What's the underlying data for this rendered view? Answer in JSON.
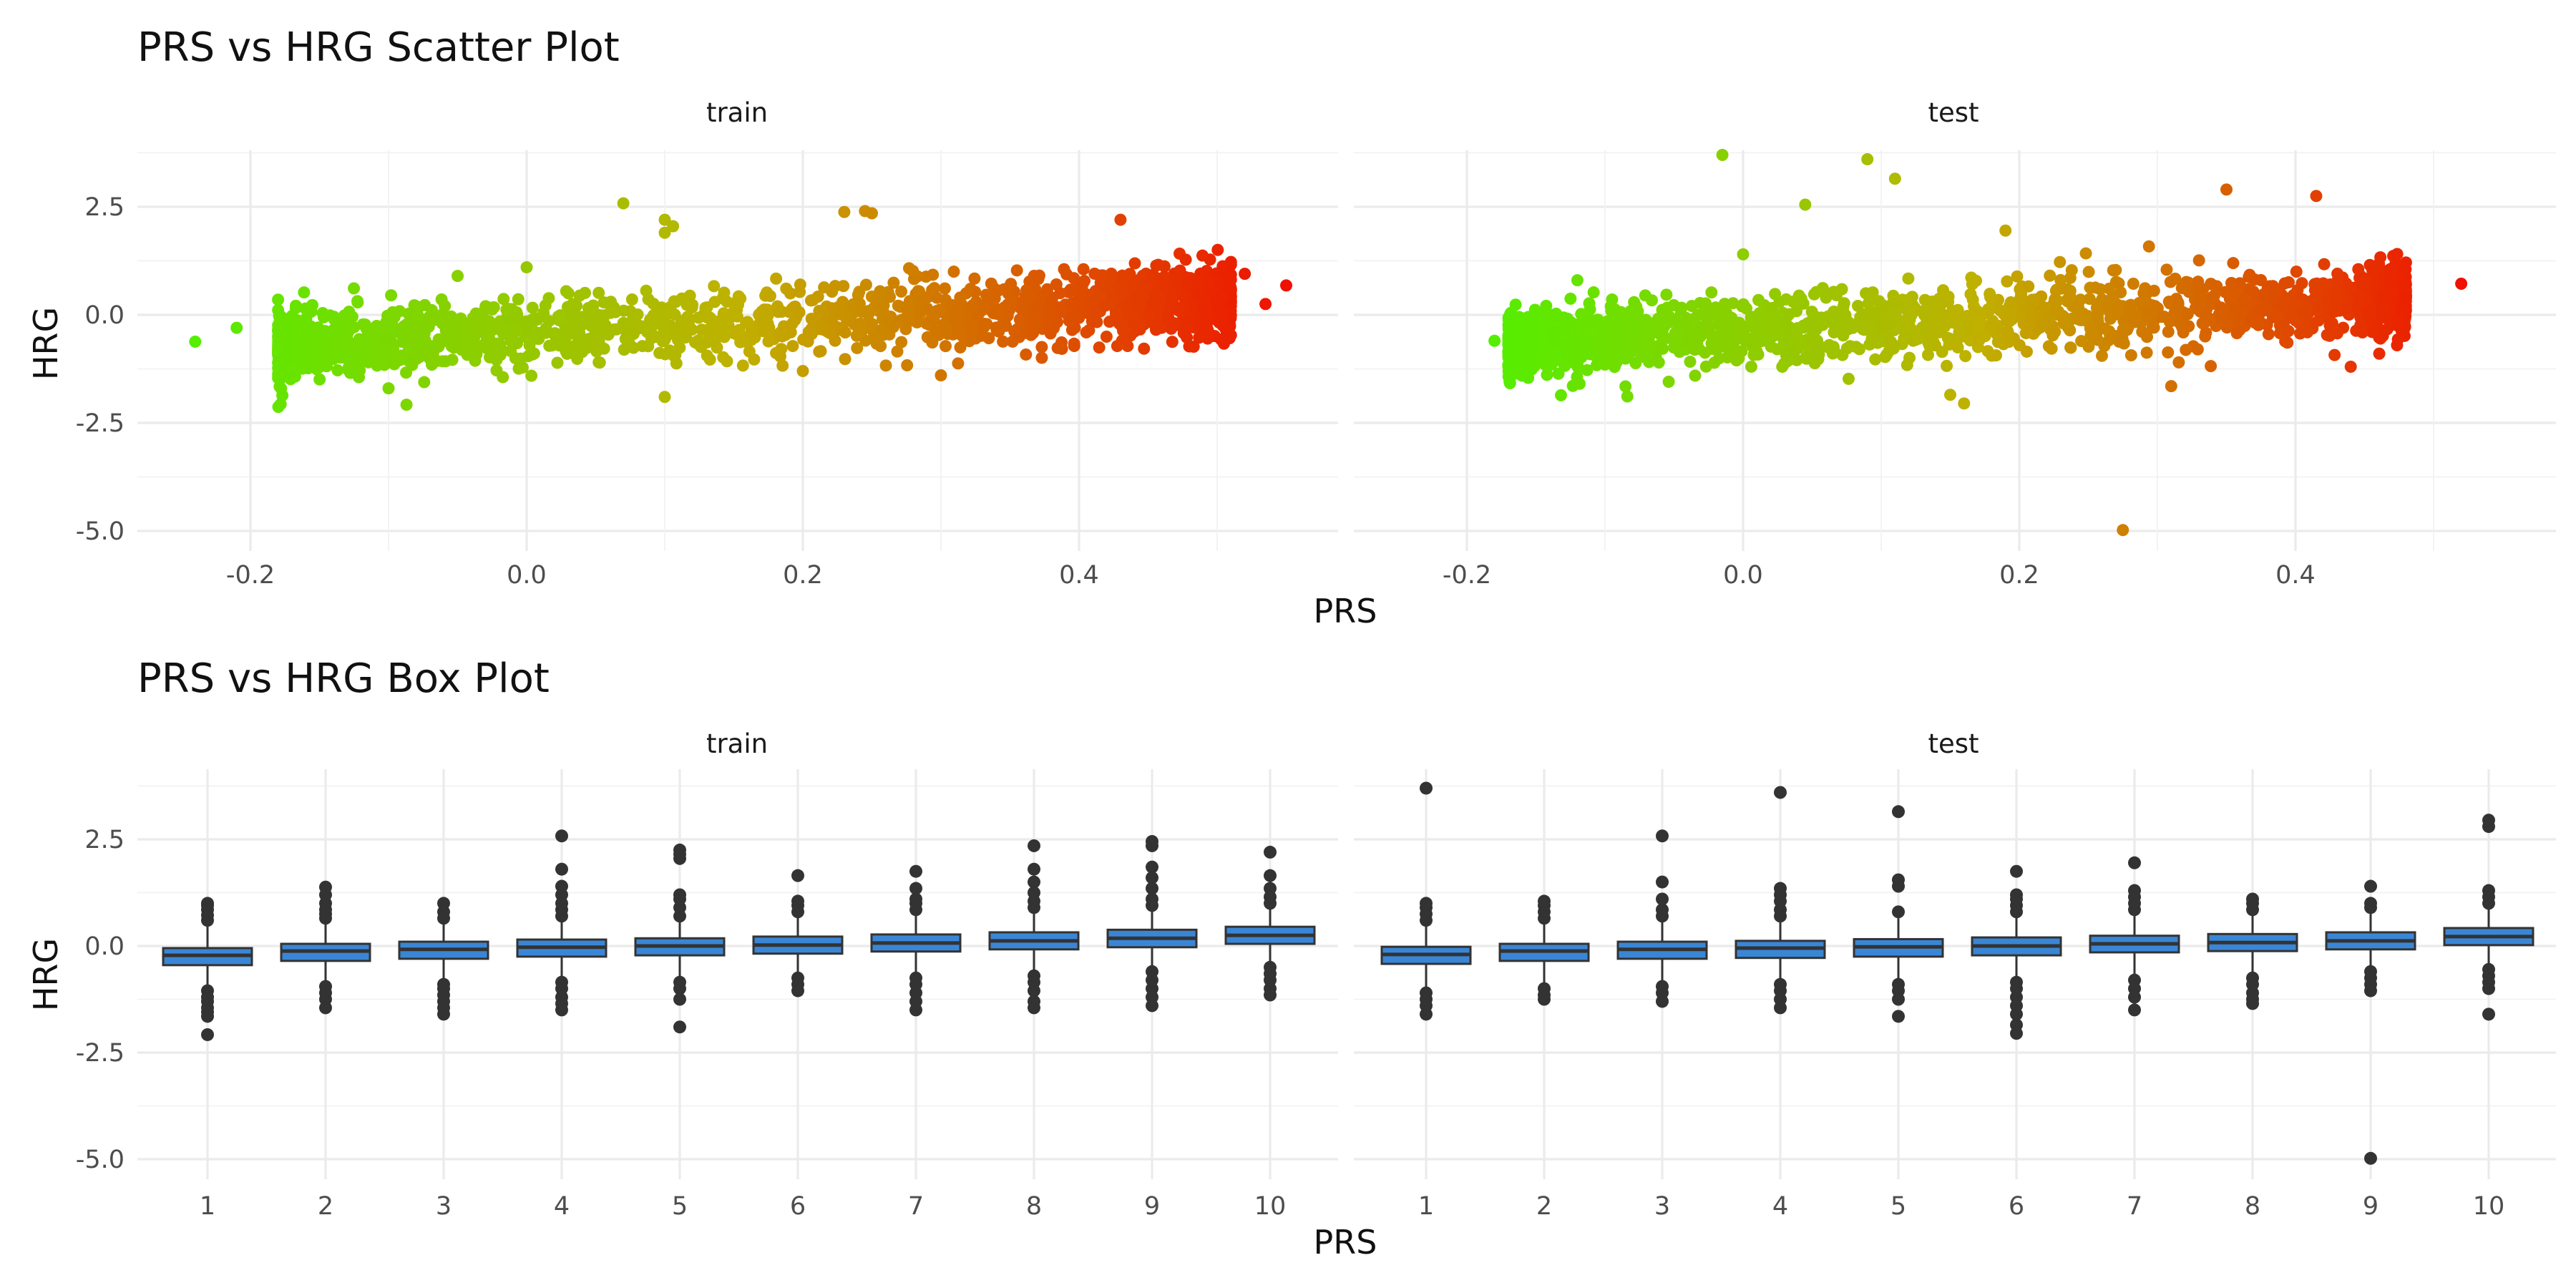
{
  "titles": {
    "scatter": "PRS vs HRG Scatter Plot",
    "box": "PRS vs HRG Box Plot"
  },
  "panels": {
    "train": "train",
    "test": "test"
  },
  "axes": {
    "x_label": "PRS",
    "y_label": "HRG"
  },
  "colors": {
    "low": "#55ee00",
    "mid": "#c0b000",
    "high": "#f01000",
    "box_fill": "#3a86d6",
    "box_line": "#333333",
    "outlier": "#333333",
    "grid": "#ebebeb"
  },
  "chart_data": [
    {
      "type": "scatter",
      "title": "PRS vs HRG Scatter Plot",
      "xlabel": "PRS",
      "ylabel": "HRG",
      "facets": [
        "train",
        "test"
      ],
      "ylim": [
        -5.5,
        4.2
      ],
      "y_ticks": [
        -5.0,
        -2.5,
        0.0,
        2.5
      ],
      "y_tick_labels": [
        "-5.0",
        "-2.5",
        "0.0",
        "2.5"
      ],
      "grid": true,
      "color_by": "PRS",
      "color_scale": [
        "#55ee00",
        "#c0b000",
        "#f01000"
      ],
      "series": [
        {
          "facet": "train",
          "xlim": [
            -0.28,
            0.58
          ],
          "x_ticks": [
            -0.2,
            0.0,
            0.2,
            0.4
          ],
          "x_tick_labels": [
            "-0.2",
            "0.0",
            "0.2",
            "0.4"
          ],
          "x_range": [
            -0.24,
            0.55
          ],
          "bulk": {
            "x_min": -0.18,
            "x_max": 0.51,
            "intercept": -0.45,
            "slope": 1.6,
            "spread": 0.4
          },
          "points": [
            {
              "x": -0.24,
              "y": -0.62
            },
            {
              "x": -0.21,
              "y": -0.3
            },
            {
              "x": -0.17,
              "y": -0.8
            },
            {
              "x": -0.1,
              "y": -1.7
            },
            {
              "x": -0.087,
              "y": -2.08
            },
            {
              "x": 0.07,
              "y": 2.58
            },
            {
              "x": 0.1,
              "y": 2.2
            },
            {
              "x": 0.1,
              "y": 1.9
            },
            {
              "x": 0.1,
              "y": -1.9
            },
            {
              "x": 0.106,
              "y": 2.05
            },
            {
              "x": 0.23,
              "y": 2.38
            },
            {
              "x": 0.245,
              "y": 2.4
            },
            {
              "x": 0.25,
              "y": 2.35
            },
            {
              "x": 0.43,
              "y": 2.2
            },
            {
              "x": 0.47,
              "y": 0.9
            },
            {
              "x": 0.5,
              "y": 0.4
            },
            {
              "x": 0.52,
              "y": 0.95
            },
            {
              "x": 0.535,
              "y": 0.25
            },
            {
              "x": 0.55,
              "y": 0.68
            },
            {
              "x": 0.3,
              "y": -1.4
            },
            {
              "x": 0.2,
              "y": -1.3
            },
            {
              "x": 0.0,
              "y": 1.1
            },
            {
              "x": -0.05,
              "y": 0.9
            }
          ]
        },
        {
          "facet": "test",
          "xlim": [
            -0.28,
            0.58
          ],
          "x_ticks": [
            -0.2,
            0.0,
            0.2,
            0.4
          ],
          "x_tick_labels": [
            "-0.2",
            "0.0",
            "0.2",
            "0.4"
          ],
          "x_range": [
            -0.18,
            0.52
          ],
          "bulk": {
            "x_min": -0.17,
            "x_max": 0.48,
            "intercept": -0.4,
            "slope": 1.6,
            "spread": 0.4
          },
          "points": [
            {
              "x": -0.015,
              "y": 3.7
            },
            {
              "x": 0.09,
              "y": 3.6
            },
            {
              "x": 0.11,
              "y": 3.15
            },
            {
              "x": 0.045,
              "y": 2.55
            },
            {
              "x": 0.35,
              "y": 2.9
            },
            {
              "x": 0.415,
              "y": 2.75
            },
            {
              "x": 0.275,
              "y": -4.98
            },
            {
              "x": 0.16,
              "y": -2.05
            },
            {
              "x": 0.15,
              "y": -1.85
            },
            {
              "x": 0.31,
              "y": -1.65
            },
            {
              "x": 0.44,
              "y": -1.2
            },
            {
              "x": 0.52,
              "y": 0.72
            },
            {
              "x": 0.19,
              "y": 1.95
            },
            {
              "x": -0.12,
              "y": 0.8
            },
            {
              "x": -0.18,
              "y": -0.6
            },
            {
              "x": -0.1,
              "y": -1.15
            },
            {
              "x": 0.0,
              "y": 1.4
            },
            {
              "x": 0.47,
              "y": 0.5
            }
          ]
        }
      ]
    },
    {
      "type": "box",
      "title": "PRS vs HRG Box Plot",
      "xlabel": "PRS",
      "ylabel": "HRG",
      "facets": [
        "train",
        "test"
      ],
      "categories": [
        "1",
        "2",
        "3",
        "4",
        "5",
        "6",
        "7",
        "8",
        "9",
        "10"
      ],
      "ylim": [
        -5.5,
        4.2
      ],
      "y_ticks": [
        -5.0,
        -2.5,
        0.0,
        2.5
      ],
      "y_tick_labels": [
        "-5.0",
        "-2.5",
        "0.0",
        "2.5"
      ],
      "grid": true,
      "series": [
        {
          "facet": "train",
          "boxes": [
            {
              "q1": -0.45,
              "median": -0.22,
              "q3": -0.05,
              "whisker_low": -1.0,
              "whisker_high": 0.55,
              "outliers": [
                0.6,
                0.72,
                0.85,
                0.95,
                1.0,
                -1.05,
                -1.2,
                -1.3,
                -1.45,
                -1.55,
                -1.65,
                -2.08
              ]
            },
            {
              "q1": -0.35,
              "median": -0.12,
              "q3": 0.05,
              "whisker_low": -0.9,
              "whisker_high": 0.6,
              "outliers": [
                0.65,
                0.75,
                0.85,
                1.0,
                1.2,
                1.38,
                -0.95,
                -1.1,
                -1.25,
                -1.45
              ]
            },
            {
              "q1": -0.3,
              "median": -0.08,
              "q3": 0.1,
              "whisker_low": -0.8,
              "whisker_high": 0.6,
              "outliers": [
                0.65,
                0.8,
                1.0,
                -0.9,
                -1.0,
                -1.15,
                -1.3,
                -1.45,
                -1.6
              ]
            },
            {
              "q1": -0.25,
              "median": -0.03,
              "q3": 0.15,
              "whisker_low": -0.75,
              "whisker_high": 0.6,
              "outliers": [
                0.7,
                0.85,
                1.0,
                1.2,
                1.4,
                1.8,
                2.58,
                -0.85,
                -1.0,
                -1.2,
                -1.35,
                -1.5
              ]
            },
            {
              "q1": -0.22,
              "median": 0.0,
              "q3": 0.18,
              "whisker_low": -0.75,
              "whisker_high": 0.65,
              "outliers": [
                0.7,
                0.9,
                1.1,
                1.2,
                2.05,
                2.15,
                2.25,
                -0.85,
                -1.0,
                -1.25,
                -1.9
              ]
            },
            {
              "q1": -0.18,
              "median": 0.02,
              "q3": 0.22,
              "whisker_low": -0.7,
              "whisker_high": 0.7,
              "outliers": [
                0.8,
                0.95,
                1.05,
                1.65,
                -0.75,
                -0.9,
                -1.05
              ]
            },
            {
              "q1": -0.13,
              "median": 0.07,
              "q3": 0.27,
              "whisker_low": -0.65,
              "whisker_high": 0.75,
              "outliers": [
                0.85,
                1.0,
                1.1,
                1.35,
                1.75,
                -0.75,
                -0.9,
                -1.1,
                -1.3,
                -1.5
              ]
            },
            {
              "q1": -0.08,
              "median": 0.12,
              "q3": 0.32,
              "whisker_low": -0.6,
              "whisker_high": 0.8,
              "outliers": [
                0.9,
                1.05,
                1.25,
                1.5,
                1.8,
                2.35,
                -0.7,
                -0.85,
                -1.05,
                -1.3,
                -1.45
              ]
            },
            {
              "q1": -0.03,
              "median": 0.18,
              "q3": 0.38,
              "whisker_low": -0.55,
              "whisker_high": 0.85,
              "outliers": [
                0.95,
                1.1,
                1.35,
                1.6,
                1.85,
                2.35,
                2.45,
                -0.6,
                -0.8,
                -1.0,
                -1.2,
                -1.4
              ]
            },
            {
              "q1": 0.05,
              "median": 0.25,
              "q3": 0.45,
              "whisker_low": -0.45,
              "whisker_high": 0.95,
              "outliers": [
                1.0,
                1.15,
                1.35,
                1.65,
                2.2,
                -0.5,
                -0.65,
                -0.8,
                -1.0,
                -1.15
              ]
            }
          ]
        },
        {
          "facet": "test",
          "boxes": [
            {
              "q1": -0.42,
              "median": -0.2,
              "q3": -0.02,
              "whisker_low": -1.0,
              "whisker_high": 0.55,
              "outliers": [
                0.6,
                0.75,
                0.9,
                1.0,
                3.7,
                -1.1,
                -1.25,
                -1.4,
                -1.6
              ]
            },
            {
              "q1": -0.35,
              "median": -0.12,
              "q3": 0.05,
              "whisker_low": -0.9,
              "whisker_high": 0.6,
              "outliers": [
                0.65,
                0.8,
                0.95,
                1.05,
                -1.0,
                -1.15,
                -1.25
              ]
            },
            {
              "q1": -0.3,
              "median": -0.08,
              "q3": 0.1,
              "whisker_low": -0.85,
              "whisker_high": 0.6,
              "outliers": [
                0.7,
                0.85,
                1.1,
                1.5,
                2.58,
                -0.95,
                -1.1,
                -1.3
              ]
            },
            {
              "q1": -0.28,
              "median": -0.05,
              "q3": 0.12,
              "whisker_low": -0.8,
              "whisker_high": 0.62,
              "outliers": [
                0.7,
                0.85,
                1.05,
                1.2,
                1.35,
                3.6,
                -0.9,
                -1.05,
                -1.25,
                -1.45
              ]
            },
            {
              "q1": -0.25,
              "median": -0.02,
              "q3": 0.16,
              "whisker_low": -0.8,
              "whisker_high": 0.65,
              "outliers": [
                0.8,
                1.4,
                1.55,
                3.15,
                -0.9,
                -1.05,
                -1.25,
                -1.65
              ]
            },
            {
              "q1": -0.22,
              "median": 0.0,
              "q3": 0.2,
              "whisker_low": -0.75,
              "whisker_high": 0.7,
              "outliers": [
                0.8,
                0.95,
                1.1,
                1.2,
                1.75,
                -0.85,
                -1.0,
                -1.2,
                -1.4,
                -1.6,
                -1.85,
                -2.05
              ]
            },
            {
              "q1": -0.15,
              "median": 0.05,
              "q3": 0.24,
              "whisker_low": -0.7,
              "whisker_high": 0.72,
              "outliers": [
                0.85,
                1.0,
                1.15,
                1.3,
                1.95,
                -0.8,
                -1.0,
                -1.2,
                -1.5
              ]
            },
            {
              "q1": -0.12,
              "median": 0.08,
              "q3": 0.28,
              "whisker_low": -0.65,
              "whisker_high": 0.78,
              "outliers": [
                0.85,
                1.0,
                1.1,
                -0.75,
                -0.9,
                -1.1,
                -1.25,
                -1.35
              ]
            },
            {
              "q1": -0.08,
              "median": 0.12,
              "q3": 0.32,
              "whisker_low": -0.55,
              "whisker_high": 0.82,
              "outliers": [
                0.9,
                1.0,
                1.4,
                -0.6,
                -0.75,
                -0.9,
                -1.05,
                -4.98
              ]
            },
            {
              "q1": 0.02,
              "median": 0.22,
              "q3": 0.42,
              "whisker_low": -0.45,
              "whisker_high": 0.92,
              "outliers": [
                1.0,
                1.15,
                1.3,
                2.8,
                2.95,
                -0.55,
                -0.7,
                -0.85,
                -1.0,
                -1.6
              ]
            }
          ]
        }
      ]
    }
  ]
}
